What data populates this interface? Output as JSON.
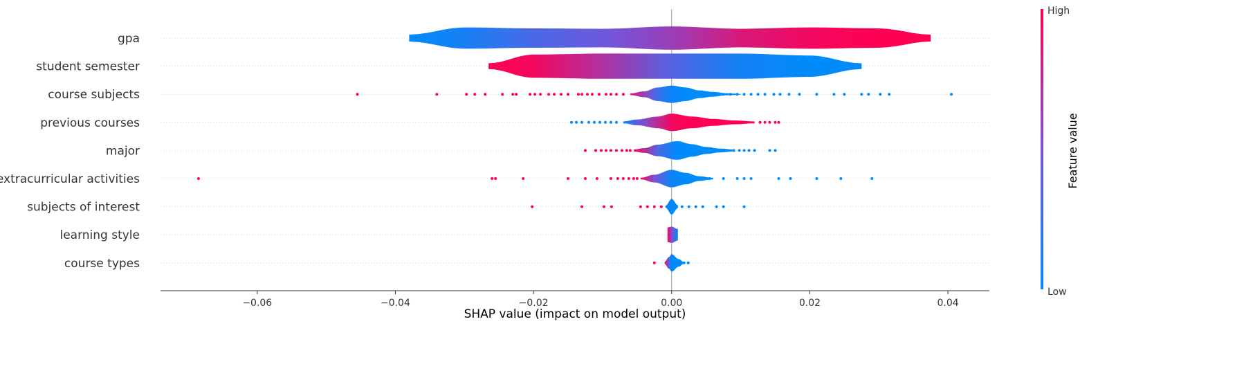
{
  "chart_data": {
    "type": "violin",
    "xlabel": "SHAP value (impact on model output)",
    "xlim": [
      -0.074,
      0.046
    ],
    "xticks": [
      -0.06,
      -0.04,
      -0.02,
      0.0,
      0.02,
      0.04
    ],
    "xtick_labels": [
      "−0.06",
      "−0.04",
      "−0.02",
      "0.00",
      "0.02",
      "0.04"
    ],
    "colorbar": {
      "title": "Feature value",
      "high_label": "High",
      "low_label": "Low",
      "high_color": "#ff0052",
      "low_color": "#008bfb"
    },
    "colors": {
      "high": "#ff0052",
      "low": "#008bfb",
      "zero_line": "#999999",
      "axis": "#333333"
    },
    "features": [
      {
        "name": "gpa",
        "profile": [
          {
            "x": -0.038,
            "w": 0.18,
            "c": 0.0
          },
          {
            "x": -0.03,
            "w": 0.55,
            "c": 0.1
          },
          {
            "x": -0.02,
            "w": 0.5,
            "c": 0.3
          },
          {
            "x": -0.01,
            "w": 0.48,
            "c": 0.45
          },
          {
            "x": 0.0,
            "w": 0.6,
            "c": 0.62
          },
          {
            "x": 0.01,
            "w": 0.48,
            "c": 0.85
          },
          {
            "x": 0.02,
            "w": 0.55,
            "c": 0.95
          },
          {
            "x": 0.03,
            "w": 0.5,
            "c": 1.0
          },
          {
            "x": 0.0375,
            "w": 0.18,
            "c": 1.0
          }
        ],
        "points": []
      },
      {
        "name": "student semester",
        "profile": [
          {
            "x": -0.0265,
            "w": 0.15,
            "c": 1.0
          },
          {
            "x": -0.02,
            "w": 0.6,
            "c": 0.95
          },
          {
            "x": -0.01,
            "w": 0.65,
            "c": 0.7
          },
          {
            "x": 0.0,
            "w": 0.65,
            "c": 0.35
          },
          {
            "x": 0.01,
            "w": 0.65,
            "c": 0.08
          },
          {
            "x": 0.02,
            "w": 0.55,
            "c": 0.0
          },
          {
            "x": 0.0275,
            "w": 0.15,
            "c": 0.0
          }
        ],
        "points": []
      },
      {
        "name": "course subjects",
        "profile": [
          {
            "x": -0.006,
            "w": 0.04,
            "c": 0.9
          },
          {
            "x": -0.004,
            "w": 0.15,
            "c": 0.6
          },
          {
            "x": -0.002,
            "w": 0.35,
            "c": 0.25
          },
          {
            "x": 0.0,
            "w": 0.45,
            "c": 0.05
          },
          {
            "x": 0.002,
            "w": 0.35,
            "c": 0.0
          },
          {
            "x": 0.004,
            "w": 0.2,
            "c": 0.0
          },
          {
            "x": 0.006,
            "w": 0.12,
            "c": 0.0
          },
          {
            "x": 0.008,
            "w": 0.05,
            "c": 0.0
          },
          {
            "x": 0.01,
            "w": 0.02,
            "c": 0.0
          }
        ],
        "points": [
          {
            "x": -0.0455,
            "c": 1
          },
          {
            "x": -0.034,
            "c": 1
          },
          {
            "x": -0.0297,
            "c": 1
          },
          {
            "x": -0.0285,
            "c": 1
          },
          {
            "x": -0.027,
            "c": 1
          },
          {
            "x": -0.0245,
            "c": 1
          },
          {
            "x": -0.023,
            "c": 1
          },
          {
            "x": -0.0225,
            "c": 1
          },
          {
            "x": -0.0205,
            "c": 1
          },
          {
            "x": -0.0198,
            "c": 1
          },
          {
            "x": -0.019,
            "c": 1
          },
          {
            "x": -0.0178,
            "c": 1
          },
          {
            "x": -0.017,
            "c": 1
          },
          {
            "x": -0.016,
            "c": 1
          },
          {
            "x": -0.015,
            "c": 1
          },
          {
            "x": -0.0135,
            "c": 1
          },
          {
            "x": -0.013,
            "c": 1
          },
          {
            "x": -0.0122,
            "c": 1
          },
          {
            "x": -0.0115,
            "c": 1
          },
          {
            "x": -0.0105,
            "c": 1
          },
          {
            "x": -0.0095,
            "c": 1
          },
          {
            "x": -0.0088,
            "c": 1
          },
          {
            "x": -0.008,
            "c": 1
          },
          {
            "x": -0.007,
            "c": 1
          },
          {
            "x": 0.0075,
            "c": 0
          },
          {
            "x": 0.0085,
            "c": 0
          },
          {
            "x": 0.0095,
            "c": 0
          },
          {
            "x": 0.0105,
            "c": 0
          },
          {
            "x": 0.0115,
            "c": 0
          },
          {
            "x": 0.0125,
            "c": 0
          },
          {
            "x": 0.0135,
            "c": 0
          },
          {
            "x": 0.0148,
            "c": 0
          },
          {
            "x": 0.0157,
            "c": 0
          },
          {
            "x": 0.017,
            "c": 0
          },
          {
            "x": 0.0185,
            "c": 0
          },
          {
            "x": 0.021,
            "c": 0
          },
          {
            "x": 0.0235,
            "c": 0
          },
          {
            "x": 0.025,
            "c": 0
          },
          {
            "x": 0.0275,
            "c": 0
          },
          {
            "x": 0.0285,
            "c": 0
          },
          {
            "x": 0.0302,
            "c": 0
          },
          {
            "x": 0.0315,
            "c": 0
          },
          {
            "x": 0.0405,
            "c": 0
          }
        ]
      },
      {
        "name": "previous courses",
        "profile": [
          {
            "x": -0.007,
            "w": 0.05,
            "c": 0.0
          },
          {
            "x": -0.005,
            "w": 0.15,
            "c": 0.4
          },
          {
            "x": -0.002,
            "w": 0.3,
            "c": 0.75
          },
          {
            "x": 0.0,
            "w": 0.45,
            "c": 0.95
          },
          {
            "x": 0.003,
            "w": 0.3,
            "c": 1.0
          },
          {
            "x": 0.006,
            "w": 0.18,
            "c": 1.0
          },
          {
            "x": 0.009,
            "w": 0.1,
            "c": 1.0
          },
          {
            "x": 0.012,
            "w": 0.05,
            "c": 1.0
          }
        ],
        "points": [
          {
            "x": -0.0145,
            "c": 0
          },
          {
            "x": -0.0138,
            "c": 0
          },
          {
            "x": -0.013,
            "c": 0
          },
          {
            "x": -0.012,
            "c": 0
          },
          {
            "x": -0.0112,
            "c": 0
          },
          {
            "x": -0.0104,
            "c": 0
          },
          {
            "x": -0.0096,
            "c": 0
          },
          {
            "x": -0.0088,
            "c": 0
          },
          {
            "x": -0.008,
            "c": 0
          },
          {
            "x": 0.0128,
            "c": 1
          },
          {
            "x": 0.0135,
            "c": 1
          },
          {
            "x": 0.0142,
            "c": 1
          },
          {
            "x": 0.015,
            "c": 1
          },
          {
            "x": 0.0155,
            "c": 1
          }
        ]
      },
      {
        "name": "major",
        "profile": [
          {
            "x": -0.0055,
            "w": 0.05,
            "c": 1.0
          },
          {
            "x": -0.004,
            "w": 0.12,
            "c": 0.75
          },
          {
            "x": -0.002,
            "w": 0.3,
            "c": 0.3
          },
          {
            "x": 0.0008,
            "w": 0.48,
            "c": 0.0
          },
          {
            "x": 0.003,
            "w": 0.32,
            "c": 0.0
          },
          {
            "x": 0.005,
            "w": 0.18,
            "c": 0.0
          },
          {
            "x": 0.007,
            "w": 0.1,
            "c": 0.0
          },
          {
            "x": 0.009,
            "w": 0.05,
            "c": 0.0
          }
        ],
        "points": [
          {
            "x": -0.0125,
            "c": 1
          },
          {
            "x": -0.011,
            "c": 1
          },
          {
            "x": -0.0102,
            "c": 1
          },
          {
            "x": -0.0095,
            "c": 1
          },
          {
            "x": -0.0088,
            "c": 1
          },
          {
            "x": -0.008,
            "c": 1
          },
          {
            "x": -0.0072,
            "c": 1
          },
          {
            "x": -0.0065,
            "c": 1
          },
          {
            "x": -0.006,
            "c": 1
          },
          {
            "x": 0.009,
            "c": 0
          },
          {
            "x": 0.0098,
            "c": 0
          },
          {
            "x": 0.0105,
            "c": 0
          },
          {
            "x": 0.0112,
            "c": 0
          },
          {
            "x": 0.012,
            "c": 0
          },
          {
            "x": 0.0142,
            "c": 0
          },
          {
            "x": 0.015,
            "c": 0
          }
        ]
      },
      {
        "name": "extracurricular activities",
        "profile": [
          {
            "x": -0.0045,
            "w": 0.04,
            "c": 1.0
          },
          {
            "x": -0.0025,
            "w": 0.2,
            "c": 0.5
          },
          {
            "x": 0.0,
            "w": 0.45,
            "c": 0.05
          },
          {
            "x": 0.002,
            "w": 0.3,
            "c": 0.0
          },
          {
            "x": 0.004,
            "w": 0.12,
            "c": 0.0
          },
          {
            "x": 0.006,
            "w": 0.04,
            "c": 0.0
          }
        ],
        "points": [
          {
            "x": -0.0685,
            "c": 1
          },
          {
            "x": -0.026,
            "c": 1
          },
          {
            "x": -0.0255,
            "c": 1
          },
          {
            "x": -0.0215,
            "c": 1
          },
          {
            "x": -0.015,
            "c": 1
          },
          {
            "x": -0.0125,
            "c": 1
          },
          {
            "x": -0.0108,
            "c": 1
          },
          {
            "x": -0.0088,
            "c": 1
          },
          {
            "x": -0.0078,
            "c": 1
          },
          {
            "x": -0.007,
            "c": 1
          },
          {
            "x": -0.0062,
            "c": 1
          },
          {
            "x": -0.0055,
            "c": 1
          },
          {
            "x": -0.005,
            "c": 1
          },
          {
            "x": 0.0055,
            "c": 0
          },
          {
            "x": 0.0075,
            "c": 0
          },
          {
            "x": 0.0095,
            "c": 0
          },
          {
            "x": 0.0105,
            "c": 0
          },
          {
            "x": 0.0115,
            "c": 0
          },
          {
            "x": 0.0155,
            "c": 0
          },
          {
            "x": 0.0172,
            "c": 0
          },
          {
            "x": 0.021,
            "c": 0
          },
          {
            "x": 0.0245,
            "c": 0
          },
          {
            "x": 0.029,
            "c": 0
          }
        ]
      },
      {
        "name": "subjects of interest",
        "profile": [
          {
            "x": -0.0009,
            "w": 0.05,
            "c": 0.1
          },
          {
            "x": 0.0,
            "w": 0.4,
            "c": 0.0
          },
          {
            "x": 0.0009,
            "w": 0.08,
            "c": 0.0
          }
        ],
        "points": [
          {
            "x": -0.0202,
            "c": 1
          },
          {
            "x": -0.013,
            "c": 1
          },
          {
            "x": -0.0098,
            "c": 1
          },
          {
            "x": -0.0087,
            "c": 1
          },
          {
            "x": -0.0045,
            "c": 1
          },
          {
            "x": -0.0035,
            "c": 1
          },
          {
            "x": -0.0025,
            "c": 1
          },
          {
            "x": -0.0015,
            "c": 1
          },
          {
            "x": 0.0015,
            "c": 0
          },
          {
            "x": 0.0025,
            "c": 0
          },
          {
            "x": 0.0035,
            "c": 0
          },
          {
            "x": 0.0045,
            "c": 0
          },
          {
            "x": 0.0065,
            "c": 0
          },
          {
            "x": 0.0075,
            "c": 0
          },
          {
            "x": 0.0105,
            "c": 0
          }
        ]
      },
      {
        "name": "learning style",
        "profile": [
          {
            "x": -0.0006,
            "w": 0.38,
            "c": 1.0
          },
          {
            "x": 0.0,
            "w": 0.42,
            "c": 0.55
          },
          {
            "x": 0.0009,
            "w": 0.3,
            "c": 0.0
          }
        ],
        "points": []
      },
      {
        "name": "course types",
        "profile": [
          {
            "x": -0.001,
            "w": 0.06,
            "c": 1.0
          },
          {
            "x": -0.0004,
            "w": 0.3,
            "c": 0.3
          },
          {
            "x": 0.0,
            "w": 0.45,
            "c": 0.0
          },
          {
            "x": 0.001,
            "w": 0.2,
            "c": 0.0
          },
          {
            "x": 0.0018,
            "w": 0.04,
            "c": 0.0
          }
        ],
        "points": [
          {
            "x": -0.0025,
            "c": 1
          },
          {
            "x": 0.0018,
            "c": 0
          },
          {
            "x": 0.0024,
            "c": 0
          }
        ]
      }
    ]
  }
}
